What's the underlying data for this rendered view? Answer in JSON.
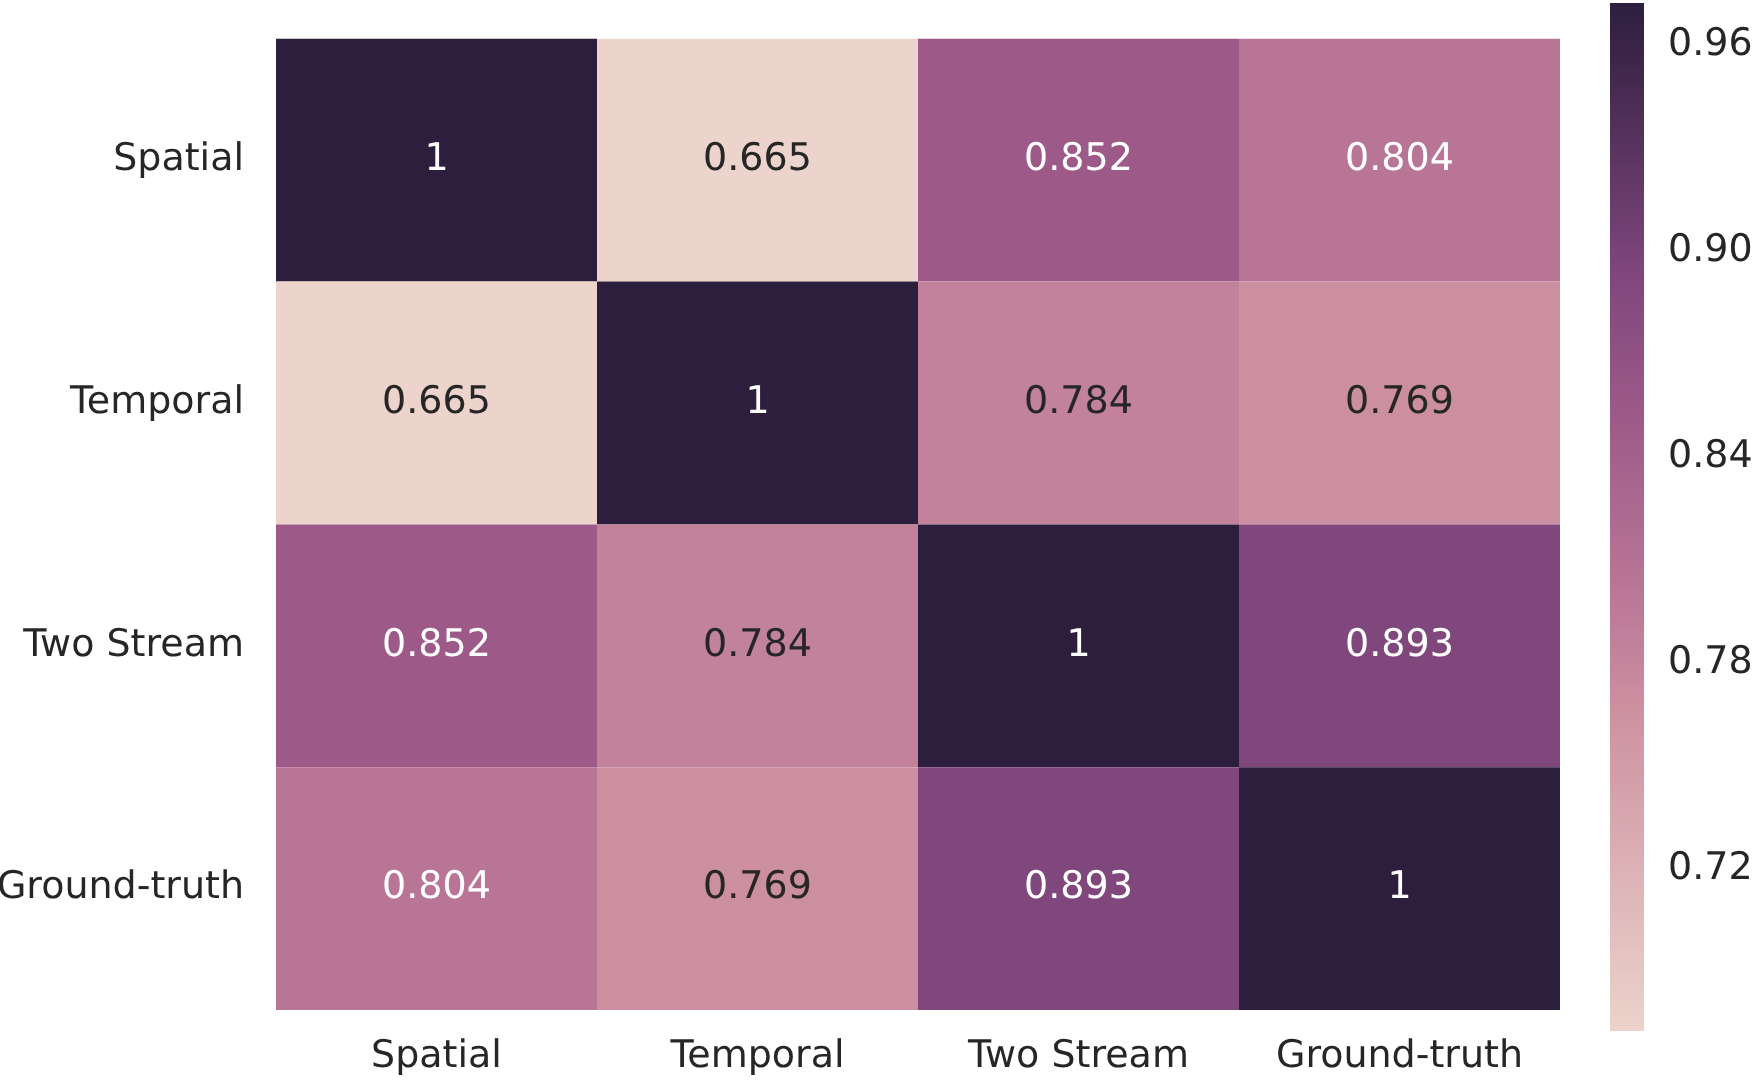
{
  "chart_data": {
    "type": "heatmap",
    "categories": [
      "Spatial",
      "Temporal",
      "Two Stream",
      "Ground-truth"
    ],
    "y_categories": [
      "Spatial",
      "Temporal",
      "Two Stream",
      "Ground-truth"
    ],
    "cells": [
      [
        1,
        0.665,
        0.852,
        0.804
      ],
      [
        0.665,
        1,
        0.784,
        0.769
      ],
      [
        0.852,
        0.784,
        1,
        0.893
      ],
      [
        0.804,
        0.769,
        0.893,
        1
      ]
    ],
    "data_labels": true,
    "clim": [
      0.673,
      0.972
    ],
    "cticks": [
      0.72,
      0.78,
      0.84,
      {
        "value": 0.9,
        "label": "0.90"
      },
      0.96
    ]
  }
}
